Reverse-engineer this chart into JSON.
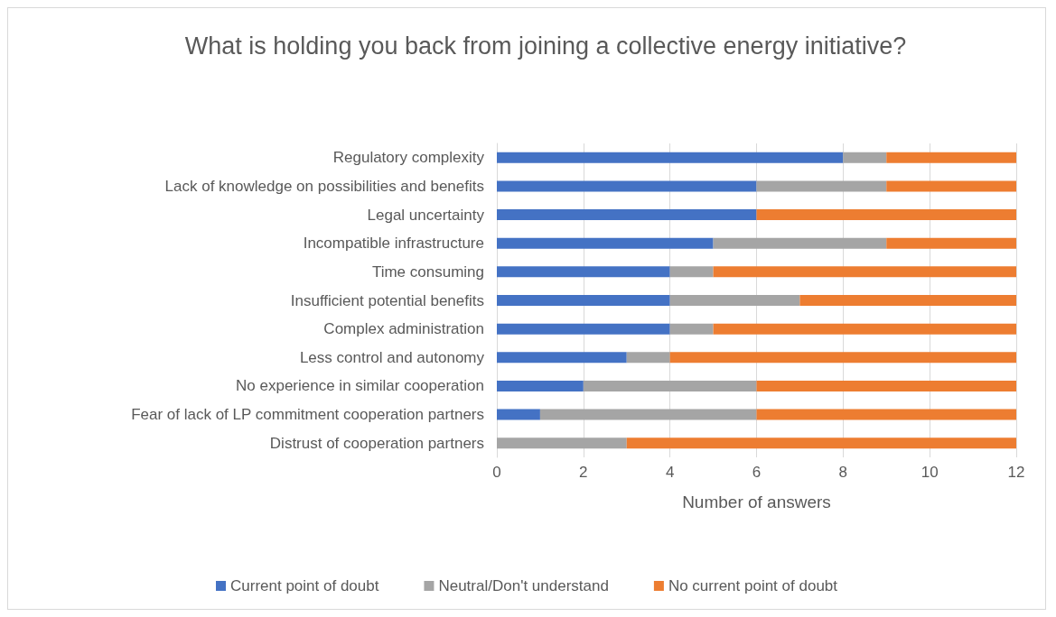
{
  "chart_data": {
    "type": "bar",
    "orientation": "horizontal",
    "stacked": true,
    "title": "What is holding you back from joining a collective energy initiative?",
    "xlabel": "Number of answers",
    "categories": [
      "Regulatory complexity",
      "Lack of knowledge on possibilities and benefits",
      "Legal uncertainty",
      "Incompatible infrastructure",
      "Time consuming",
      "Insufficient potential benefits",
      "Complex administration",
      "Less control and autonomy",
      "No experience in similar cooperation",
      "Fear of lack of LP commitment cooperation partners",
      "Distrust of cooperation partners"
    ],
    "series": [
      {
        "name": "Current point of doubt",
        "color": "#4472c4",
        "values": [
          8,
          6,
          6,
          5,
          4,
          4,
          4,
          3,
          2,
          1,
          0
        ]
      },
      {
        "name": "Neutral/Don't understand",
        "color": "#a5a5a5",
        "values": [
          1,
          3,
          0,
          4,
          1,
          3,
          1,
          1,
          4,
          5,
          3
        ]
      },
      {
        "name": "No current point of doubt",
        "color": "#ed7d31",
        "values": [
          3,
          3,
          6,
          3,
          7,
          5,
          7,
          8,
          6,
          6,
          9
        ]
      }
    ],
    "xlim": [
      0,
      12
    ],
    "xticks": [
      0,
      2,
      4,
      6,
      8,
      10,
      12
    ],
    "grid": "x",
    "legend": "bottom"
  }
}
